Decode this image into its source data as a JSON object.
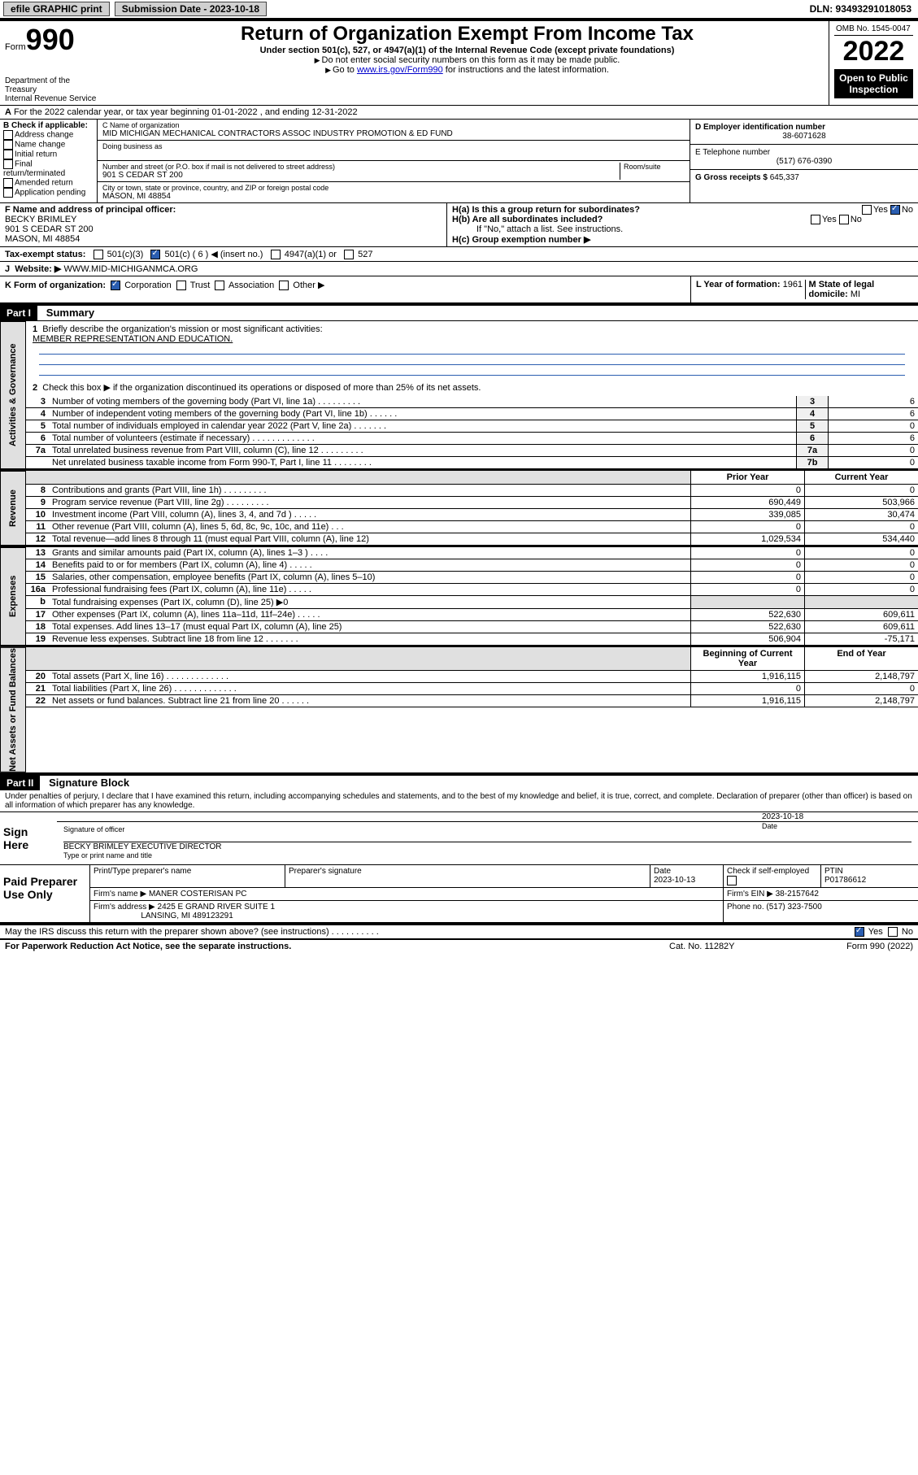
{
  "topbar": {
    "efile": "efile GRAPHIC print",
    "sub_label": "Submission Date - 2023-10-18",
    "dln": "DLN: 93493291018053"
  },
  "header": {
    "form_label": "Form",
    "form_no": "990",
    "dept": "Department of the Treasury",
    "irs": "Internal Revenue Service",
    "title": "Return of Organization Exempt From Income Tax",
    "subtitle": "Under section 501(c), 527, or 4947(a)(1) of the Internal Revenue Code (except private foundations)",
    "note1": "Do not enter social security numbers on this form as it may be made public.",
    "note2_pre": "Go to ",
    "note2_link": "www.irs.gov/Form990",
    "note2_post": " for instructions and the latest information.",
    "omb": "OMB No. 1545-0047",
    "year": "2022",
    "open": "Open to Public Inspection"
  },
  "row_a": "For the 2022 calendar year, or tax year beginning 01-01-2022    , and ending 12-31-2022",
  "col_b": {
    "label": "B Check if applicable:",
    "items": [
      "Address change",
      "Name change",
      "Initial return",
      "Final return/terminated",
      "Amended return",
      "Application pending"
    ]
  },
  "col_c": {
    "name_lbl": "C Name of organization",
    "name": "MID MICHIGAN MECHANICAL CONTRACTORS ASSOC INDUSTRY PROMOTION & ED FUND",
    "dba_lbl": "Doing business as",
    "street_lbl": "Number and street (or P.O. box if mail is not delivered to street address)",
    "street": "901 S CEDAR ST 200",
    "room_lbl": "Room/suite",
    "city_lbl": "City or town, state or province, country, and ZIP or foreign postal code",
    "city": "MASON, MI  48854"
  },
  "col_d": {
    "ein_lbl": "D Employer identification number",
    "ein": "38-6071628",
    "tel_lbl": "E Telephone number",
    "tel": "(517) 676-0390",
    "gross_lbl": "G Gross receipts $",
    "gross": "645,337"
  },
  "row_f": {
    "f_lbl": "F  Name and address of principal officer:",
    "f_name": "BECKY BRIMLEY",
    "f_addr1": "901 S CEDAR ST 200",
    "f_addr2": "MASON, MI  48854",
    "ha_lbl": "H(a)  Is this a group return for subordinates?",
    "hb_lbl": "H(b)  Are all subordinates included?",
    "hb_note": "If \"No,\" attach a list. See instructions.",
    "hc_lbl": "H(c)  Group exemption number ▶"
  },
  "row_i": {
    "i_lbl": "Tax-exempt status:",
    "i_501c3": "501(c)(3)",
    "i_501c": "501(c) ( 6 ) ◀ (insert no.)",
    "i_4947": "4947(a)(1) or",
    "i_527": "527",
    "j_lbl": "Website: ▶",
    "j_val": "WWW.MID-MICHIGANMCA.ORG"
  },
  "row_k": {
    "k_lbl": "K Form of organization:",
    "k_corp": "Corporation",
    "k_trust": "Trust",
    "k_assoc": "Association",
    "k_other": "Other ▶",
    "l_lbl": "L Year of formation:",
    "l_val": "1961",
    "m_lbl": "M State of legal domicile:",
    "m_val": "MI"
  },
  "part1": {
    "header": "Part I",
    "title": "Summary",
    "line1_lbl": "Briefly describe the organization's mission or most significant activities:",
    "line1_val": "MEMBER REPRESENTATION AND EDUCATION.",
    "line2": "Check this box ▶      if the organization discontinued its operations or disposed of more than 25% of its net assets.",
    "gov_lines": [
      {
        "n": "3",
        "t": "Number of voting members of the governing body (Part VI, line 1a)   .    .    .    .    .    .    .    .    .",
        "idx": "3",
        "v": "6"
      },
      {
        "n": "4",
        "t": "Number of independent voting members of the governing body (Part VI, line 1b)  .    .    .    .    .    .",
        "idx": "4",
        "v": "6"
      },
      {
        "n": "5",
        "t": "Total number of individuals employed in calendar year 2022 (Part V, line 2a)  .    .    .    .    .    .    .",
        "idx": "5",
        "v": "0"
      },
      {
        "n": "6",
        "t": "Total number of volunteers (estimate if necessary)  .    .    .    .    .    .    .    .    .    .    .    .    .",
        "idx": "6",
        "v": "6"
      },
      {
        "n": "7a",
        "t": "Total unrelated business revenue from Part VIII, column (C), line 12  .    .    .    .    .    .    .    .    .",
        "idx": "7a",
        "v": "0"
      },
      {
        "n": "",
        "t": "Net unrelated business taxable income from Form 990-T, Part I, line 11  .    .    .    .    .    .    .    .",
        "idx": "7b",
        "v": "0"
      }
    ],
    "col_h1": "Prior Year",
    "col_h2": "Current Year",
    "rev_lines": [
      {
        "n": "8",
        "t": "Contributions and grants (Part VIII, line 1h)   .    .    .    .    .    .    .    .    .",
        "v1": "0",
        "v2": "0"
      },
      {
        "n": "9",
        "t": "Program service revenue (Part VIII, line 2g)   .    .    .    .    .    .    .    .    .",
        "v1": "690,449",
        "v2": "503,966"
      },
      {
        "n": "10",
        "t": "Investment income (Part VIII, column (A), lines 3, 4, and 7d )   .    .    .    .    .",
        "v1": "339,085",
        "v2": "30,474"
      },
      {
        "n": "11",
        "t": "Other revenue (Part VIII, column (A), lines 5, 6d, 8c, 9c, 10c, and 11e)   .    .    .",
        "v1": "0",
        "v2": "0"
      },
      {
        "n": "12",
        "t": "Total revenue—add lines 8 through 11 (must equal Part VIII, column (A), line 12)",
        "v1": "1,029,534",
        "v2": "534,440"
      }
    ],
    "exp_lines": [
      {
        "n": "13",
        "t": "Grants and similar amounts paid (Part IX, column (A), lines 1–3 )   .    .    .    .",
        "v1": "0",
        "v2": "0"
      },
      {
        "n": "14",
        "t": "Benefits paid to or for members (Part IX, column (A), line 4)   .    .    .    .    .",
        "v1": "0",
        "v2": "0"
      },
      {
        "n": "15",
        "t": "Salaries, other compensation, employee benefits (Part IX, column (A), lines 5–10)",
        "v1": "0",
        "v2": "0"
      },
      {
        "n": "16a",
        "t": "Professional fundraising fees (Part IX, column (A), line 11e)   .    .    .    .    .",
        "v1": "0",
        "v2": "0"
      },
      {
        "n": "b",
        "t": "Total fundraising expenses (Part IX, column (D), line 25) ▶0",
        "v1": "",
        "v2": "",
        "gray": true
      },
      {
        "n": "17",
        "t": "Other expenses (Part IX, column (A), lines 11a–11d, 11f–24e)   .    .    .    .    .",
        "v1": "522,630",
        "v2": "609,611"
      },
      {
        "n": "18",
        "t": "Total expenses. Add lines 13–17 (must equal Part IX, column (A), line 25)",
        "v1": "522,630",
        "v2": "609,611"
      },
      {
        "n": "19",
        "t": "Revenue less expenses. Subtract line 18 from line 12   .    .    .    .    .    .    .",
        "v1": "506,904",
        "v2": "-75,171"
      }
    ],
    "na_h1": "Beginning of Current Year",
    "na_h2": "End of Year",
    "na_lines": [
      {
        "n": "20",
        "t": "Total assets (Part X, line 16)   .    .    .    .    .    .    .    .    .    .    .    .    .",
        "v1": "1,916,115",
        "v2": "2,148,797"
      },
      {
        "n": "21",
        "t": "Total liabilities (Part X, line 26)   .    .    .    .    .    .    .    .    .    .    .    .    .",
        "v1": "0",
        "v2": "0"
      },
      {
        "n": "22",
        "t": "Net assets or fund balances. Subtract line 21 from line 20   .    .    .    .    .    .",
        "v1": "1,916,115",
        "v2": "2,148,797"
      }
    ]
  },
  "part2": {
    "header": "Part II",
    "title": "Signature Block",
    "decl": "Under penalties of perjury, I declare that I have examined this return, including accompanying schedules and statements, and to the best of my knowledge and belief, it is true, correct, and complete. Declaration of preparer (other than officer) is based on all information of which preparer has any knowledge.",
    "sign_here": "Sign Here",
    "sig_officer": "Signature of officer",
    "sig_date": "2023-10-18",
    "sig_date_lbl": "Date",
    "sig_name": "BECKY BRIMLEY EXECUTIVE DIRECTOR",
    "sig_name_lbl": "Type or print name and title",
    "paid": "Paid Preparer Use Only",
    "p_name_lbl": "Print/Type preparer's name",
    "p_sig_lbl": "Preparer's signature",
    "p_date_lbl": "Date",
    "p_date": "2023-10-13",
    "p_check_lbl": "Check        if self-employed",
    "p_ptin_lbl": "PTIN",
    "p_ptin": "P01786612",
    "p_firm_lbl": "Firm's name   ▶",
    "p_firm": "MANER COSTERISAN PC",
    "p_ein_lbl": "Firm's EIN ▶",
    "p_ein": "38-2157642",
    "p_addr_lbl": "Firm's address ▶",
    "p_addr1": "2425 E GRAND RIVER SUITE 1",
    "p_addr2": "LANSING, MI  489123291",
    "p_phone_lbl": "Phone no.",
    "p_phone": "(517) 323-7500",
    "discuss": "May the IRS discuss this return with the preparer shown above? (see instructions)   .    .    .    .    .    .    .    .    .    .",
    "foot1": "For Paperwork Reduction Act Notice, see the separate instructions.",
    "foot2": "Cat. No. 11282Y",
    "foot3": "Form 990 (2022)"
  },
  "vert": {
    "gov": "Activities & Governance",
    "rev": "Revenue",
    "exp": "Expenses",
    "na": "Net Assets or Fund Balances"
  }
}
